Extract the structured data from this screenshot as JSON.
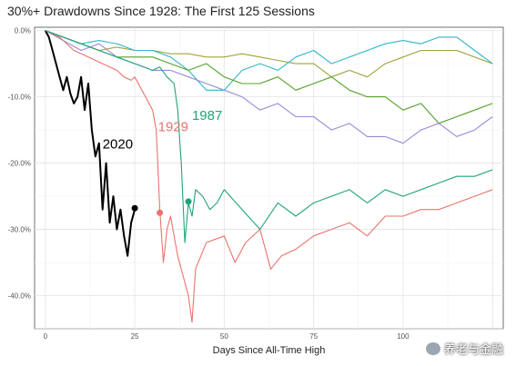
{
  "chart_data": {
    "type": "line",
    "title": "30%+ Drawdowns Since 1928: The First 125 Sessions",
    "xlabel": "Days Since All-Time High",
    "ylabel": "",
    "xlim": [
      -3,
      128
    ],
    "ylim": [
      -45,
      0.5
    ],
    "xticks": [
      0,
      25,
      50,
      75,
      100,
      125
    ],
    "xtick_labels": [
      "0",
      "25",
      "50",
      "75",
      "100",
      ""
    ],
    "yticks": [
      0,
      -10,
      -20,
      -30,
      -40
    ],
    "ytick_labels": [
      "0.0%",
      "-10.0%",
      "-20.0%",
      "-30.0%",
      "-40.0%"
    ],
    "grid": true,
    "legend": "none",
    "series": [
      {
        "name": "2020",
        "color": "#000000",
        "x": [
          0,
          1,
          2,
          3,
          4,
          5,
          6,
          7,
          8,
          9,
          10,
          11,
          12,
          13,
          14,
          15,
          16,
          17,
          18,
          19,
          20,
          21,
          22,
          23,
          24,
          25
        ],
        "y": [
          0,
          -1,
          -3,
          -5,
          -7,
          -9,
          -7,
          -9.5,
          -11,
          -10,
          -7,
          -12,
          -8,
          -15,
          -19,
          -17,
          -27,
          -20,
          -29,
          -25,
          -30,
          -27,
          -31,
          -34,
          -29,
          -27
        ]
      },
      {
        "name": "1929",
        "color": "#e8746c",
        "x": [
          0,
          4,
          8,
          12,
          16,
          20,
          22,
          24,
          25,
          26,
          27,
          28,
          29,
          30,
          31,
          32,
          33,
          34,
          35,
          36,
          37,
          38,
          39,
          40,
          41,
          42,
          45,
          50,
          53,
          56,
          60,
          63,
          66,
          70,
          75,
          80,
          85,
          90,
          95,
          100,
          105,
          110,
          115,
          120,
          125
        ],
        "y": [
          0,
          -1,
          -3,
          -4,
          -5,
          -6,
          -7,
          -7.5,
          -7,
          -8,
          -9,
          -10,
          -11,
          -12,
          -15,
          -27,
          -35,
          -30,
          -28,
          -31,
          -34,
          -36,
          -38,
          -40,
          -44,
          -36,
          -32,
          -31,
          -35,
          -32,
          -30,
          -36,
          -34,
          -33,
          -31,
          -30,
          -29,
          -31,
          -28,
          -28,
          -27,
          -27,
          -26,
          -25,
          -24
        ]
      },
      {
        "name": "1987",
        "color": "#20a37a",
        "x": [
          0,
          5,
          10,
          15,
          20,
          25,
          30,
          32,
          34,
          36,
          37,
          38,
          39,
          40,
          41,
          42,
          44,
          46,
          48,
          50,
          55,
          60,
          65,
          70,
          75,
          80,
          85,
          90,
          95,
          100,
          105,
          110,
          115,
          120,
          125
        ],
        "y": [
          0,
          -1,
          -2,
          -3,
          -4,
          -5,
          -6,
          -5.5,
          -7,
          -8,
          -12,
          -20,
          -32,
          -26,
          -28,
          -24,
          -25,
          -27,
          -26,
          -24,
          -27,
          -30,
          -26,
          -28,
          -26,
          -25,
          -24,
          -26,
          -24,
          -25,
          -24,
          -23,
          -22,
          -22,
          -21
        ]
      },
      {
        "name": "",
        "color": "#9ea43a",
        "x": [
          0,
          5,
          10,
          15,
          20,
          25,
          30,
          35,
          40,
          45,
          50,
          55,
          60,
          65,
          70,
          75,
          80,
          85,
          90,
          95,
          100,
          105,
          110,
          115,
          120,
          125
        ],
        "y": [
          0,
          -1,
          -2,
          -3,
          -2.5,
          -3,
          -3,
          -3.5,
          -3.5,
          -4,
          -4,
          -3.5,
          -4,
          -4.5,
          -5,
          -5,
          -7,
          -6,
          -7,
          -5,
          -4,
          -3,
          -3,
          -3,
          -4,
          -5
        ]
      },
      {
        "name": "",
        "color": "#2fb8c9",
        "x": [
          0,
          5,
          10,
          15,
          20,
          25,
          30,
          35,
          40,
          45,
          50,
          55,
          60,
          65,
          70,
          75,
          80,
          85,
          90,
          95,
          100,
          105,
          110,
          115,
          120,
          125
        ],
        "y": [
          0,
          -1,
          -2,
          -1.5,
          -2,
          -3,
          -3,
          -4,
          -6,
          -9,
          -9,
          -6,
          -5,
          -6,
          -4,
          -3,
          -5,
          -4,
          -3,
          -2,
          -1.5,
          -2,
          -1,
          -1,
          -3,
          -5
        ]
      },
      {
        "name": "",
        "color": "#54a02a",
        "x": [
          0,
          5,
          10,
          15,
          20,
          25,
          30,
          35,
          40,
          45,
          50,
          55,
          60,
          65,
          70,
          75,
          80,
          85,
          90,
          95,
          100,
          105,
          110,
          115,
          120,
          125
        ],
        "y": [
          0,
          -1,
          -2,
          -3,
          -4,
          -4,
          -4,
          -5,
          -6,
          -5,
          -7,
          -8,
          -8,
          -7,
          -9,
          -8,
          -7,
          -9,
          -10,
          -10,
          -12,
          -11,
          -14,
          -13,
          -12,
          -11
        ]
      },
      {
        "name": "",
        "color": "#9b8ad8",
        "x": [
          0,
          5,
          10,
          15,
          20,
          25,
          30,
          35,
          40,
          45,
          50,
          55,
          60,
          65,
          70,
          75,
          80,
          85,
          90,
          95,
          100,
          105,
          110,
          115,
          120,
          125
        ],
        "y": [
          0,
          -1.5,
          -3,
          -2,
          -4,
          -5,
          -6,
          -6,
          -7,
          -8,
          -9,
          -10,
          -12,
          -11,
          -13,
          -13,
          -15,
          -14,
          -16,
          -16,
          -17,
          -15,
          -14,
          -16,
          -15,
          -13
        ]
      }
    ],
    "annotations": [
      {
        "text": "2020",
        "color": "#000000",
        "x": 16,
        "y": -17.8
      },
      {
        "text": "1929",
        "color": "#e8746c",
        "x": 31.5,
        "y": -15.2
      },
      {
        "text": "1987",
        "color": "#20a37a",
        "x": 41,
        "y": -13.5
      }
    ],
    "markers": [
      {
        "series": "2020",
        "x": 25,
        "y": -26.8,
        "color": "#000000"
      },
      {
        "series": "1929",
        "x": 32,
        "y": -27.5,
        "color": "#e8746c"
      },
      {
        "series": "1987",
        "x": 40,
        "y": -25.8,
        "color": "#20a37a"
      }
    ]
  },
  "watermark": {
    "text": "养老与金融",
    "icon": "wechat-icon"
  }
}
